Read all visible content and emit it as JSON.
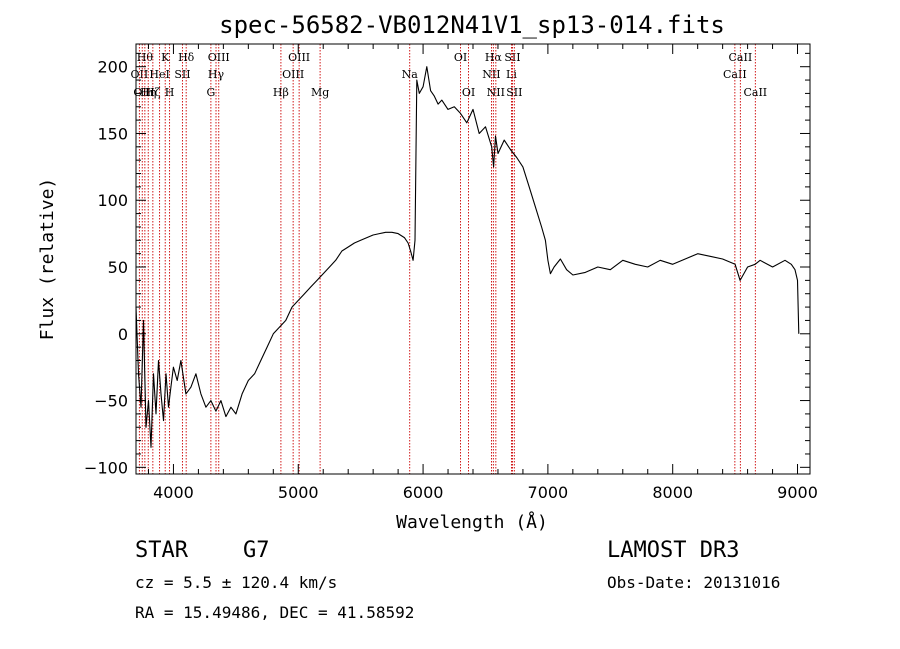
{
  "chart_data": {
    "type": "line",
    "title": "spec-56582-VB012N41V1_sp13-014.fits",
    "xlabel": "Wavelength (Å)",
    "ylabel": "Flux (relative)",
    "xlim": [
      3700,
      9100
    ],
    "ylim": [
      -105,
      217
    ],
    "xticks": [
      4000,
      5000,
      6000,
      7000,
      8000,
      9000
    ],
    "yticks": [
      -100,
      -50,
      0,
      50,
      100,
      150,
      200
    ],
    "grid": false,
    "series": [
      {
        "name": "flux",
        "color": "#000000",
        "x": [
          3700,
          3720,
          3740,
          3760,
          3780,
          3800,
          3820,
          3840,
          3860,
          3880,
          3900,
          3920,
          3940,
          3960,
          3980,
          4000,
          4030,
          4060,
          4100,
          4140,
          4180,
          4220,
          4260,
          4300,
          4340,
          4380,
          4420,
          4460,
          4500,
          4550,
          4600,
          4650,
          4700,
          4750,
          4800,
          4850,
          4900,
          4950,
          5000,
          5050,
          5100,
          5150,
          5200,
          5250,
          5300,
          5350,
          5400,
          5450,
          5500,
          5550,
          5600,
          5650,
          5700,
          5750,
          5800,
          5850,
          5880,
          5900,
          5920,
          5935,
          5950,
          5970,
          6000,
          6030,
          6060,
          6090,
          6120,
          6150,
          6200,
          6250,
          6300,
          6350,
          6400,
          6450,
          6500,
          6550,
          6565,
          6580,
          6600,
          6650,
          6700,
          6750,
          6800,
          6850,
          6900,
          6950,
          6980,
          7000,
          7020,
          7050,
          7100,
          7150,
          7200,
          7300,
          7400,
          7500,
          7600,
          7700,
          7800,
          7900,
          8000,
          8100,
          8200,
          8300,
          8400,
          8500,
          8540,
          8600,
          8660,
          8700,
          8800,
          8900,
          8950,
          8980,
          9000,
          9010
        ],
        "y": [
          20,
          -30,
          -55,
          10,
          -70,
          -50,
          -85,
          -30,
          -60,
          -20,
          -45,
          -65,
          -30,
          -55,
          -40,
          -25,
          -35,
          -20,
          -45,
          -40,
          -30,
          -45,
          -55,
          -50,
          -58,
          -50,
          -62,
          -55,
          -60,
          -45,
          -35,
          -30,
          -20,
          -10,
          0,
          5,
          10,
          20,
          25,
          30,
          35,
          40,
          45,
          50,
          55,
          62,
          65,
          68,
          70,
          72,
          74,
          75,
          76,
          76,
          75,
          72,
          68,
          62,
          55,
          70,
          190,
          180,
          185,
          200,
          182,
          178,
          172,
          175,
          168,
          170,
          165,
          158,
          168,
          150,
          155,
          140,
          125,
          148,
          135,
          145,
          138,
          132,
          125,
          110,
          95,
          80,
          70,
          55,
          45,
          50,
          56,
          48,
          44,
          46,
          50,
          48,
          55,
          52,
          50,
          55,
          52,
          56,
          60,
          58,
          56,
          52,
          40,
          50,
          52,
          55,
          50,
          55,
          52,
          48,
          40,
          0
        ]
      }
    ],
    "line_markers": {
      "color": "#cc0000",
      "lines": [
        {
          "wavelength": 3727,
          "label": "OII",
          "row": 2
        },
        {
          "wavelength": 3750,
          "label": "OII",
          "row": 3
        },
        {
          "wavelength": 3771,
          "label": "Hθ",
          "row": 1
        },
        {
          "wavelength": 3798,
          "label": "Hη",
          "row": 3
        },
        {
          "wavelength": 3835,
          "label": "Hζ",
          "row": 3
        },
        {
          "wavelength": 3889,
          "label": "HeI",
          "row": 2
        },
        {
          "wavelength": 3934,
          "label": "K",
          "row": 1
        },
        {
          "wavelength": 3969,
          "label": "H",
          "row": 3
        },
        {
          "wavelength": 4072,
          "label": "SII",
          "row": 2
        },
        {
          "wavelength": 4102,
          "label": "Hδ",
          "row": 1
        },
        {
          "wavelength": 4300,
          "label": "G",
          "row": 3
        },
        {
          "wavelength": 4341,
          "label": "Hγ",
          "row": 2
        },
        {
          "wavelength": 4363,
          "label": "OIII",
          "row": 1
        },
        {
          "wavelength": 4861,
          "label": "Hβ",
          "row": 3
        },
        {
          "wavelength": 4959,
          "label": "OIII",
          "row": 2
        },
        {
          "wavelength": 5007,
          "label": "OIII",
          "row": 1
        },
        {
          "wavelength": 5175,
          "label": "Mg",
          "row": 3
        },
        {
          "wavelength": 5893,
          "label": "Na",
          "row": 2
        },
        {
          "wavelength": 6300,
          "label": "OI",
          "row": 1
        },
        {
          "wavelength": 6364,
          "label": "OI",
          "row": 3
        },
        {
          "wavelength": 6548,
          "label": "NII",
          "row": 2
        },
        {
          "wavelength": 6563,
          "label": "Hα",
          "row": 1
        },
        {
          "wavelength": 6583,
          "label": "NII",
          "row": 3
        },
        {
          "wavelength": 6708,
          "label": "Li",
          "row": 2
        },
        {
          "wavelength": 6716,
          "label": "SII",
          "row": 1
        },
        {
          "wavelength": 6731,
          "label": "SII",
          "row": 3
        },
        {
          "wavelength": 8498,
          "label": "CaII",
          "row": 2
        },
        {
          "wavelength": 8542,
          "label": "CaII",
          "row": 1
        },
        {
          "wavelength": 8662,
          "label": "CaII",
          "row": 3
        }
      ]
    }
  },
  "info": {
    "object_class": "STAR",
    "subclass": "G7",
    "survey": "LAMOST DR3",
    "redshift_text": "cz = 5.5 ± 120.4 km/s",
    "obs_date_text": "Obs-Date: 20131016",
    "coords_text": "RA =  15.49486, DEC =  41.58592"
  }
}
